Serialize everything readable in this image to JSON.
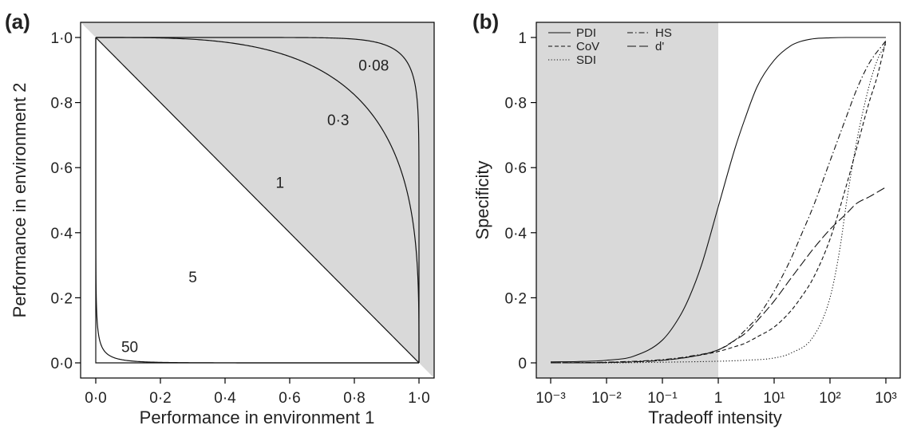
{
  "chart_data": [
    {
      "panel": "(a)",
      "type": "line",
      "xlabel": "Performance in environment 1",
      "ylabel": "Performance in environment 2",
      "xlim": [
        0,
        1
      ],
      "ylim": [
        0,
        1
      ],
      "xticks": [
        "0·0",
        "0·2",
        "0·4",
        "0·6",
        "0·8",
        "1·0"
      ],
      "yticks": [
        "0·0",
        "0·2",
        "0·4",
        "0·6",
        "0·8",
        "1·0"
      ],
      "shaded_region": "above the diagonal from (0,1) to (1,0)",
      "grid": false,
      "curve_equation": "x^(1/k) + y^(1/k) = 1",
      "series": [
        {
          "name": "0·08",
          "k": 0.08
        },
        {
          "name": "0·3",
          "k": 0.3
        },
        {
          "name": "1",
          "k": 1
        },
        {
          "name": "5",
          "k": 5
        },
        {
          "name": "50",
          "k": 50
        }
      ]
    },
    {
      "panel": "(b)",
      "type": "line",
      "xlabel": "Tradeoff intensity",
      "ylabel": "Specificity",
      "xscale": "log",
      "xlim": [
        0.001,
        1000
      ],
      "ylim": [
        0,
        1
      ],
      "xticks": [
        "10⁻³",
        "10⁻²",
        "10⁻¹",
        "1",
        "10¹",
        "10²",
        "10³"
      ],
      "yticks": [
        "0",
        "0·2",
        "0·4",
        "0·6",
        "0·8",
        "1"
      ],
      "shaded_region": "x from 0.001 to 1",
      "grid": false,
      "legend_position": "top-left",
      "series": [
        {
          "name": "PDI",
          "dash": "solid",
          "x": [
            0.001,
            0.003,
            0.01,
            0.03,
            0.1,
            0.2,
            0.3,
            0.5,
            1,
            2,
            3,
            5,
            10,
            20,
            30,
            50,
            100,
            200,
            300,
            500,
            1000
          ],
          "y": [
            0.003,
            0.004,
            0.008,
            0.02,
            0.07,
            0.14,
            0.2,
            0.3,
            0.48,
            0.66,
            0.75,
            0.85,
            0.93,
            0.975,
            0.988,
            0.996,
            0.999,
            1,
            1,
            1,
            1
          ]
        },
        {
          "name": "CoV",
          "dash": "dashed",
          "x": [
            0.001,
            0.01,
            0.1,
            0.3,
            1,
            2,
            3,
            5,
            10,
            20,
            30,
            50,
            100,
            200,
            300,
            500,
            700,
            1000
          ],
          "y": [
            0,
            0.001,
            0.008,
            0.018,
            0.035,
            0.05,
            0.06,
            0.08,
            0.11,
            0.16,
            0.2,
            0.26,
            0.38,
            0.55,
            0.66,
            0.8,
            0.88,
            0.99
          ]
        },
        {
          "name": "SDI",
          "dash": "dotted",
          "x": [
            0.001,
            0.01,
            0.1,
            1,
            3,
            10,
            20,
            50,
            100,
            150,
            200,
            300,
            500,
            700,
            1000
          ],
          "y": [
            0,
            0,
            0.002,
            0.005,
            0.008,
            0.015,
            0.03,
            0.08,
            0.2,
            0.35,
            0.5,
            0.68,
            0.85,
            0.93,
            0.98
          ]
        },
        {
          "name": "HS",
          "dash": "dot-dash",
          "x": [
            0.001,
            0.01,
            0.1,
            0.3,
            1,
            2,
            3,
            5,
            10,
            20,
            30,
            50,
            100,
            200,
            300,
            500,
            1000
          ],
          "y": [
            0,
            0.002,
            0.01,
            0.02,
            0.04,
            0.07,
            0.1,
            0.14,
            0.22,
            0.32,
            0.39,
            0.48,
            0.62,
            0.76,
            0.84,
            0.92,
            0.99
          ]
        },
        {
          "name": "d'",
          "dash": "long-dash",
          "x": [
            0.001,
            0.01,
            0.1,
            0.3,
            1,
            2,
            3,
            5,
            10,
            20,
            30,
            50,
            100,
            200,
            300,
            500,
            1000
          ],
          "y": [
            0,
            0.001,
            0.008,
            0.018,
            0.04,
            0.07,
            0.09,
            0.13,
            0.19,
            0.26,
            0.3,
            0.35,
            0.41,
            0.46,
            0.49,
            0.51,
            0.54
          ]
        }
      ]
    }
  ]
}
